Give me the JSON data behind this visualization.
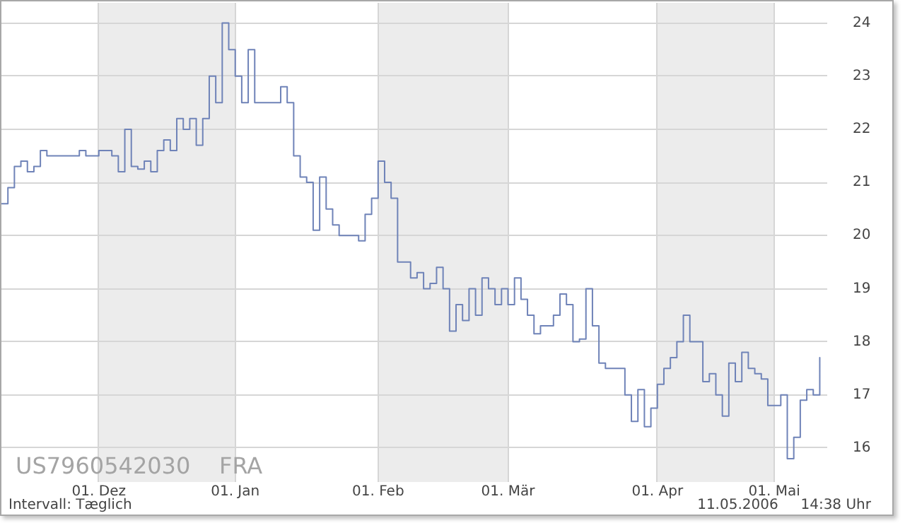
{
  "chart_data": {
    "type": "step",
    "categories": [
      null,
      null,
      null,
      null,
      null,
      null,
      null,
      null,
      null,
      null,
      null,
      null,
      null,
      null,
      null,
      "01. Dez",
      null,
      null,
      null,
      null,
      null,
      null,
      null,
      null,
      null,
      null,
      null,
      null,
      null,
      null,
      null,
      null,
      null,
      null,
      null,
      null,
      "01. Jan",
      null,
      null,
      null,
      null,
      null,
      null,
      null,
      null,
      null,
      null,
      null,
      null,
      null,
      null,
      null,
      null,
      null,
      null,
      null,
      null,
      null,
      "01. Feb",
      null,
      null,
      null,
      null,
      null,
      null,
      null,
      null,
      null,
      null,
      null,
      null,
      null,
      null,
      null,
      null,
      null,
      null,
      null,
      "01. Mär",
      null,
      null,
      null,
      null,
      null,
      null,
      null,
      null,
      null,
      null,
      null,
      null,
      null,
      null,
      null,
      null,
      null,
      null,
      null,
      null,
      null,
      null,
      "01. Apr",
      null,
      null,
      null,
      null,
      null,
      null,
      null,
      null,
      null,
      null,
      null,
      null,
      null,
      null,
      null,
      null,
      null,
      "01. Mai",
      null,
      null,
      null,
      null,
      null,
      null,
      null
    ],
    "values": [
      20.6,
      20.9,
      21.3,
      21.4,
      21.2,
      21.3,
      21.6,
      21.5,
      21.5,
      21.5,
      21.5,
      21.5,
      21.6,
      21.5,
      21.5,
      21.6,
      21.6,
      21.5,
      21.2,
      22.0,
      21.3,
      21.25,
      21.4,
      21.2,
      21.6,
      21.8,
      21.6,
      22.2,
      22.0,
      22.2,
      21.7,
      22.2,
      23.0,
      22.5,
      24.0,
      23.5,
      23.0,
      22.5,
      23.5,
      22.5,
      22.5,
      22.5,
      22.5,
      22.8,
      22.5,
      21.5,
      21.1,
      21.0,
      20.1,
      21.1,
      20.5,
      20.2,
      20.0,
      20.0,
      20.0,
      19.9,
      20.4,
      20.7,
      21.4,
      21.0,
      20.7,
      19.5,
      19.5,
      19.2,
      19.3,
      19.0,
      19.1,
      19.4,
      19.0,
      18.2,
      18.7,
      18.4,
      19.0,
      18.5,
      19.2,
      19.0,
      18.7,
      19.0,
      18.7,
      19.2,
      18.8,
      18.5,
      18.15,
      18.3,
      18.3,
      18.5,
      18.9,
      18.7,
      18.0,
      18.05,
      19.0,
      18.3,
      17.6,
      17.5,
      17.5,
      17.5,
      17.0,
      16.5,
      17.1,
      16.4,
      16.75,
      17.2,
      17.5,
      17.7,
      18.0,
      18.5,
      18.0,
      18.0,
      17.25,
      17.4,
      17.0,
      16.6,
      17.6,
      17.25,
      17.8,
      17.5,
      17.4,
      17.3,
      16.8,
      16.8,
      17.0,
      15.8,
      16.2,
      16.9,
      17.1,
      17.0,
      17.7
    ],
    "color": "#6f83b8",
    "ylim": [
      15.36,
      24.38
    ],
    "yticks": [
      16,
      17,
      18,
      19,
      20,
      21,
      22,
      23,
      24
    ],
    "grid": true,
    "bands": [
      {
        "axis": "x",
        "from": "01. Dez",
        "to": "01. Jan",
        "color": "#ececec"
      },
      {
        "axis": "x",
        "from": "01. Feb",
        "to": "01. Mär",
        "color": "#ececec"
      },
      {
        "axis": "x",
        "from": "01. Apr",
        "to": "01. Mai",
        "color": "#ececec"
      }
    ],
    "annotations": [
      "US7960542030    FRA",
      "Intervall: Tæglich",
      "11.05.2006     14:38 Uhr"
    ]
  }
}
